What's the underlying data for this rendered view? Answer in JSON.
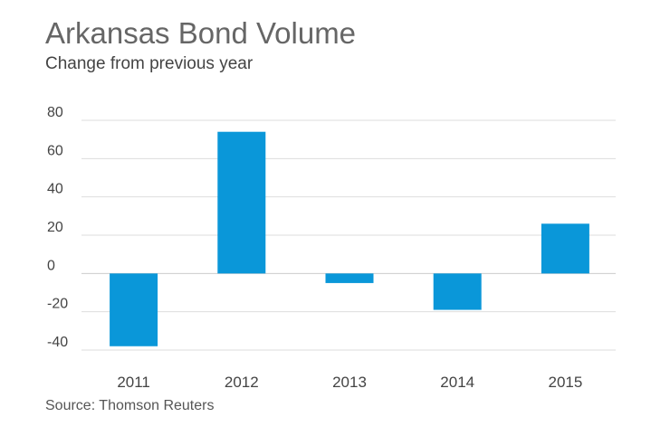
{
  "title": "Arkansas Bond Volume",
  "subtitle": "Change from previous year",
  "source": "Source: Thomson Reuters",
  "colors": {
    "bar": "#0a97d9",
    "grid": "#dddddd",
    "zero": "#cccccc",
    "text": "#444444"
  },
  "chart_data": {
    "type": "bar",
    "title": "Arkansas Bond Volume",
    "subtitle": "Change from previous year",
    "categories": [
      "2011",
      "2012",
      "2013",
      "2014",
      "2015"
    ],
    "values": [
      -38,
      74,
      -5,
      -19,
      26
    ],
    "ylim": [
      -40,
      80
    ],
    "yticks": [
      80,
      60,
      40,
      20,
      0,
      -20,
      -40
    ],
    "ytick_labels": [
      "80",
      "60",
      "40",
      "20",
      "0",
      "-20",
      "-40"
    ],
    "grid": true,
    "legend": "none"
  }
}
